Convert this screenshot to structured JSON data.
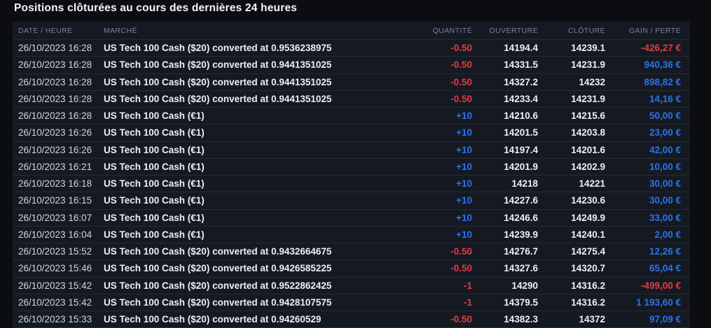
{
  "title": "Positions clôturées au cours des dernières 24 heures",
  "colors": {
    "positive": "#2b74e8",
    "negative": "#e13c43",
    "panel_background": "#151922",
    "page_background": "#0b0d11"
  },
  "table": {
    "headers": {
      "datetime": "DATE / HEURE",
      "market": "MARCHÉ",
      "quantity": "QUANTITÉ",
      "open": "OUVERTURE",
      "close": "CLÔTURE",
      "pnl": "GAIN / PERTE"
    },
    "rows": [
      {
        "datetime": "26/10/2023 16:28",
        "market": "US Tech 100 Cash ($20) converted at 0.9536238975",
        "quantity": "-0.50",
        "quantity_sign": "neg",
        "open": "14194.4",
        "close": "14239.1",
        "pnl": "-426,27 €",
        "pnl_sign": "neg"
      },
      {
        "datetime": "26/10/2023 16:28",
        "market": "US Tech 100 Cash ($20) converted at 0.9441351025",
        "quantity": "-0.50",
        "quantity_sign": "neg",
        "open": "14331.5",
        "close": "14231.9",
        "pnl": "940,36 €",
        "pnl_sign": "pos"
      },
      {
        "datetime": "26/10/2023 16:28",
        "market": "US Tech 100 Cash ($20) converted at 0.9441351025",
        "quantity": "-0.50",
        "quantity_sign": "neg",
        "open": "14327.2",
        "close": "14232",
        "pnl": "898,82 €",
        "pnl_sign": "pos"
      },
      {
        "datetime": "26/10/2023 16:28",
        "market": "US Tech 100 Cash ($20) converted at 0.9441351025",
        "quantity": "-0.50",
        "quantity_sign": "neg",
        "open": "14233.4",
        "close": "14231.9",
        "pnl": "14,16 €",
        "pnl_sign": "pos"
      },
      {
        "datetime": "26/10/2023 16:28",
        "market": "US Tech 100 Cash (€1)",
        "quantity": "+10",
        "quantity_sign": "pos",
        "open": "14210.6",
        "close": "14215.6",
        "pnl": "50,00 €",
        "pnl_sign": "pos"
      },
      {
        "datetime": "26/10/2023 16:26",
        "market": "US Tech 100 Cash (€1)",
        "quantity": "+10",
        "quantity_sign": "pos",
        "open": "14201.5",
        "close": "14203.8",
        "pnl": "23,00 €",
        "pnl_sign": "pos"
      },
      {
        "datetime": "26/10/2023 16:26",
        "market": "US Tech 100 Cash (€1)",
        "quantity": "+10",
        "quantity_sign": "pos",
        "open": "14197.4",
        "close": "14201.6",
        "pnl": "42,00 €",
        "pnl_sign": "pos"
      },
      {
        "datetime": "26/10/2023 16:21",
        "market": "US Tech 100 Cash (€1)",
        "quantity": "+10",
        "quantity_sign": "pos",
        "open": "14201.9",
        "close": "14202.9",
        "pnl": "10,00 €",
        "pnl_sign": "pos"
      },
      {
        "datetime": "26/10/2023 16:18",
        "market": "US Tech 100 Cash (€1)",
        "quantity": "+10",
        "quantity_sign": "pos",
        "open": "14218",
        "close": "14221",
        "pnl": "30,00 €",
        "pnl_sign": "pos"
      },
      {
        "datetime": "26/10/2023 16:15",
        "market": "US Tech 100 Cash (€1)",
        "quantity": "+10",
        "quantity_sign": "pos",
        "open": "14227.6",
        "close": "14230.6",
        "pnl": "30,00 €",
        "pnl_sign": "pos"
      },
      {
        "datetime": "26/10/2023 16:07",
        "market": "US Tech 100 Cash (€1)",
        "quantity": "+10",
        "quantity_sign": "pos",
        "open": "14246.6",
        "close": "14249.9",
        "pnl": "33,00 €",
        "pnl_sign": "pos"
      },
      {
        "datetime": "26/10/2023 16:04",
        "market": "US Tech 100 Cash (€1)",
        "quantity": "+10",
        "quantity_sign": "pos",
        "open": "14239.9",
        "close": "14240.1",
        "pnl": "2,00 €",
        "pnl_sign": "pos"
      },
      {
        "datetime": "26/10/2023 15:52",
        "market": "US Tech 100 Cash ($20) converted at 0.9432664675",
        "quantity": "-0.50",
        "quantity_sign": "neg",
        "open": "14276.7",
        "close": "14275.4",
        "pnl": "12,26 €",
        "pnl_sign": "pos"
      },
      {
        "datetime": "26/10/2023 15:46",
        "market": "US Tech 100 Cash ($20) converted at 0.9426585225",
        "quantity": "-0.50",
        "quantity_sign": "neg",
        "open": "14327.6",
        "close": "14320.7",
        "pnl": "65,04 €",
        "pnl_sign": "pos"
      },
      {
        "datetime": "26/10/2023 15:42",
        "market": "US Tech 100 Cash ($20) converted at 0.9522862425",
        "quantity": "-1",
        "quantity_sign": "neg",
        "open": "14290",
        "close": "14316.2",
        "pnl": "-499,00 €",
        "pnl_sign": "neg"
      },
      {
        "datetime": "26/10/2023 15:42",
        "market": "US Tech 100 Cash ($20) converted at 0.9428107575",
        "quantity": "-1",
        "quantity_sign": "neg",
        "open": "14379.5",
        "close": "14316.2",
        "pnl": "1 193,60 €",
        "pnl_sign": "pos"
      },
      {
        "datetime": "26/10/2023 15:33",
        "market": "US Tech 100 Cash ($20) converted at 0.94260529",
        "quantity": "-0.50",
        "quantity_sign": "neg",
        "open": "14382.3",
        "close": "14372",
        "pnl": "97,09 €",
        "pnl_sign": "pos"
      }
    ]
  }
}
